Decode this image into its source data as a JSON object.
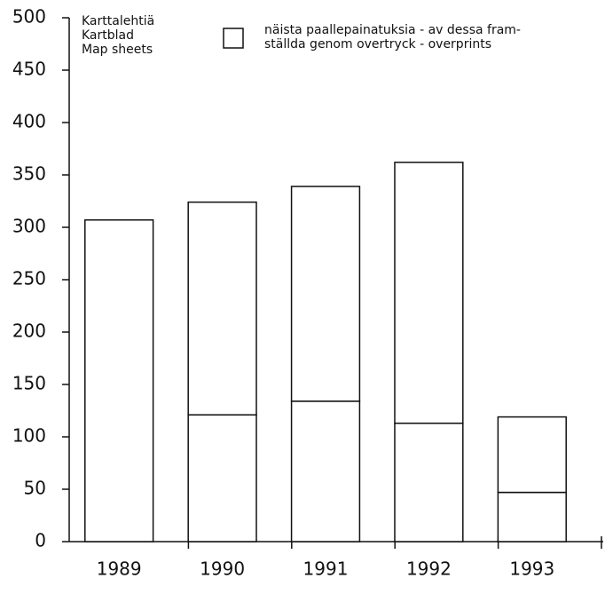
{
  "chart_data": {
    "type": "bar",
    "categories": [
      "1989",
      "1990",
      "1991",
      "1992",
      "1993"
    ],
    "series": [
      {
        "name_lines": [
          "Karttalehtiä",
          "Kartblad",
          "Map sheets"
        ],
        "color": "#ffffff",
        "values": [
          307,
          121,
          134,
          113,
          47
        ]
      },
      {
        "name_lines": [
          "näista paallepainatuksia - av dessa fram-",
          "ställda genom overtryck - overprints"
        ],
        "color": "#ffffff",
        "values": [
          null,
          203,
          205,
          249,
          72
        ]
      }
    ],
    "stacked": true,
    "ylim": [
      0,
      500
    ],
    "yticks": [
      0,
      50,
      100,
      150,
      200,
      250,
      300,
      350,
      400,
      450,
      500
    ]
  }
}
